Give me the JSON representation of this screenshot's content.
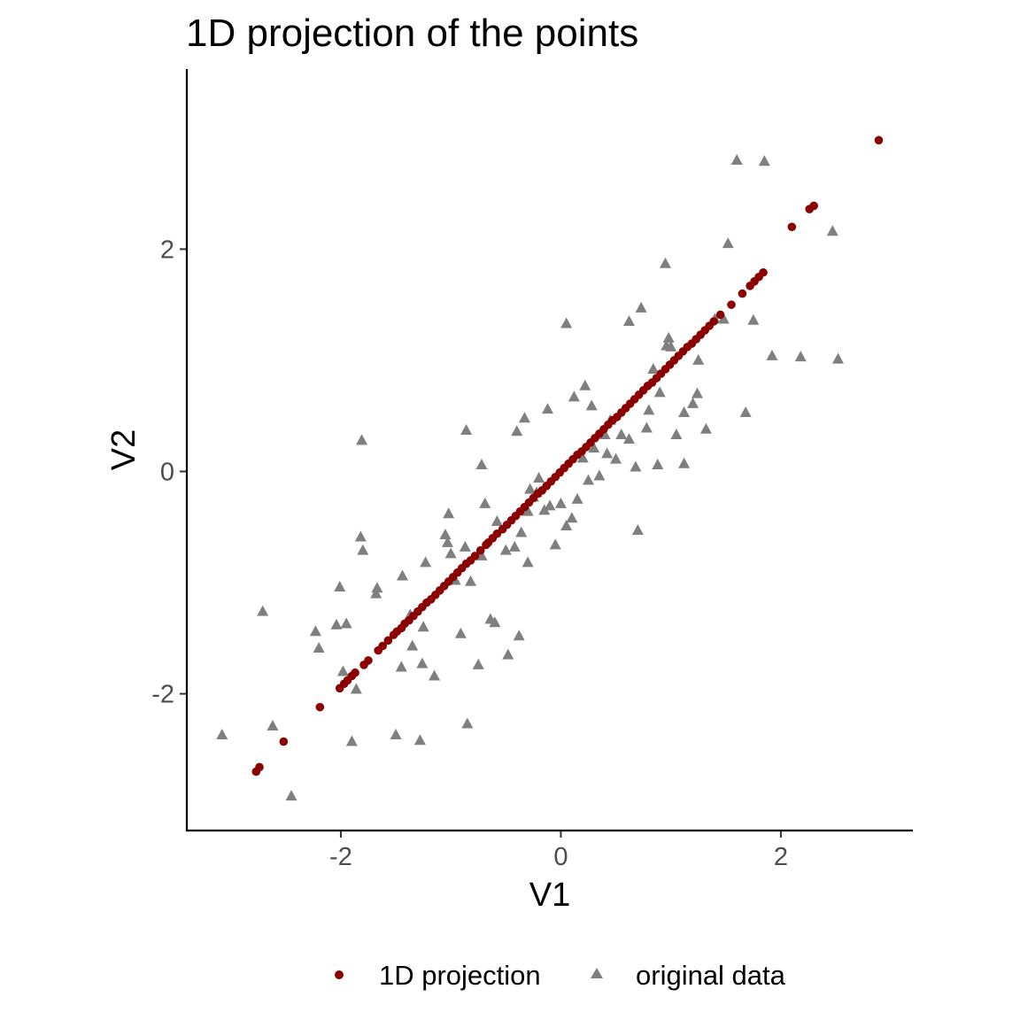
{
  "chart_data": {
    "type": "scatter",
    "title": "1D projection of the points",
    "xlabel": "V1",
    "ylabel": "V2",
    "xlim": [
      -3.4,
      3.2
    ],
    "ylim": [
      -3.23,
      3.62
    ],
    "xticks": [
      -2,
      0,
      2
    ],
    "yticks": [
      -2,
      0,
      2
    ],
    "xtick_labels": [
      "-2",
      "0",
      "2"
    ],
    "ytick_labels": [
      "-2",
      "0",
      "2"
    ],
    "grid": false,
    "legend_position": "bottom",
    "series": [
      {
        "name": "1D projection",
        "marker": "circle",
        "color": "#8B0000",
        "x": [
          -2.77,
          -2.74,
          -2.52,
          -2.19,
          -2.01,
          -1.97,
          -1.94,
          -1.9,
          -1.87,
          -1.79,
          -1.75,
          -1.66,
          -1.62,
          -1.57,
          -1.52,
          -1.49,
          -1.45,
          -1.42,
          -1.38,
          -1.34,
          -1.3,
          -1.26,
          -1.22,
          -1.18,
          -1.14,
          -1.1,
          -1.06,
          -1.02,
          -0.98,
          -0.94,
          -0.9,
          -0.86,
          -0.82,
          -0.78,
          -0.73,
          -0.68,
          -0.66,
          -0.62,
          -0.58,
          -0.53,
          -0.49,
          -0.45,
          -0.41,
          -0.37,
          -0.33,
          -0.29,
          -0.25,
          -0.21,
          -0.17,
          -0.13,
          -0.09,
          -0.05,
          -0.01,
          0.03,
          0.07,
          0.11,
          0.15,
          0.19,
          0.23,
          0.27,
          0.31,
          0.35,
          0.39,
          0.43,
          0.47,
          0.51,
          0.55,
          0.59,
          0.63,
          0.67,
          0.71,
          0.75,
          0.79,
          0.83,
          0.87,
          0.91,
          0.95,
          0.99,
          1.03,
          1.07,
          1.11,
          1.15,
          1.19,
          1.23,
          1.27,
          1.31,
          1.35,
          1.39,
          1.45,
          1.55,
          1.65,
          1.72,
          1.76,
          1.8,
          1.84,
          2.1,
          2.26,
          2.3,
          2.89
        ],
        "y": [
          -2.7,
          -2.66,
          -2.43,
          -2.12,
          -1.95,
          -1.91,
          -1.88,
          -1.84,
          -1.81,
          -1.74,
          -1.7,
          -1.61,
          -1.57,
          -1.52,
          -1.47,
          -1.44,
          -1.41,
          -1.37,
          -1.34,
          -1.3,
          -1.26,
          -1.22,
          -1.18,
          -1.15,
          -1.11,
          -1.07,
          -1.03,
          -0.99,
          -0.95,
          -0.91,
          -0.87,
          -0.83,
          -0.8,
          -0.76,
          -0.71,
          -0.66,
          -0.64,
          -0.6,
          -0.56,
          -0.52,
          -0.48,
          -0.44,
          -0.4,
          -0.36,
          -0.32,
          -0.28,
          -0.24,
          -0.2,
          -0.17,
          -0.13,
          -0.09,
          -0.05,
          -0.01,
          0.03,
          0.07,
          0.11,
          0.15,
          0.18,
          0.22,
          0.26,
          0.3,
          0.34,
          0.38,
          0.42,
          0.46,
          0.49,
          0.53,
          0.57,
          0.61,
          0.65,
          0.69,
          0.73,
          0.77,
          0.8,
          0.84,
          0.88,
          0.92,
          0.96,
          1.0,
          1.04,
          1.08,
          1.12,
          1.15,
          1.19,
          1.23,
          1.27,
          1.31,
          1.35,
          1.41,
          1.5,
          1.6,
          1.67,
          1.71,
          1.75,
          1.79,
          2.2,
          2.36,
          2.39,
          2.98
        ]
      },
      {
        "name": "original data",
        "marker": "triangle",
        "color": "#7F7F7F",
        "x": [
          -3.08,
          -2.71,
          -2.62,
          -2.45,
          -2.23,
          -2.2,
          -2.04,
          -2.01,
          -1.95,
          -1.9,
          -1.86,
          -1.82,
          -1.81,
          -1.68,
          -1.67,
          -1.5,
          -1.44,
          -1.35,
          -1.28,
          -1.25,
          -1.23,
          -1.15,
          -1.05,
          -1.03,
          -1.0,
          -0.96,
          -0.91,
          -0.85,
          -0.82,
          -0.75,
          -0.72,
          -0.69,
          -0.64,
          -0.58,
          -0.5,
          -0.48,
          -0.42,
          -0.38,
          -0.36,
          -0.3,
          -0.28,
          -0.25,
          -0.2,
          -0.15,
          -0.1,
          -0.05,
          0.0,
          0.05,
          0.1,
          0.15,
          0.2,
          0.25,
          0.3,
          0.35,
          0.4,
          0.45,
          0.5,
          0.55,
          0.62,
          0.7,
          0.78,
          0.84,
          0.9,
          0.95,
          1.0,
          1.05,
          1.12,
          1.2,
          1.25,
          1.32,
          1.4,
          1.48,
          1.52,
          1.6,
          1.68,
          1.75,
          1.85,
          1.92,
          2.18,
          2.47,
          2.52,
          -1.26,
          -0.87,
          -0.6,
          -1.45,
          0.05,
          0.73,
          0.96,
          -1.8,
          -1.98,
          -1.37,
          -0.3,
          -0.4,
          0.22,
          0.62,
          0.8,
          0.88,
          1.12,
          0.98,
          1.24,
          0.68,
          -0.12,
          -0.86,
          -0.33,
          0.12,
          0.42,
          -0.72,
          -1.02,
          0.28,
          -0.22
        ],
        "y": [
          -2.37,
          -1.26,
          -2.29,
          -2.92,
          -1.44,
          -1.59,
          -1.38,
          -1.04,
          -1.37,
          -2.43,
          -1.96,
          -0.59,
          0.28,
          -1.1,
          -1.05,
          -2.37,
          -0.94,
          -1.57,
          -2.42,
          -1.4,
          -0.82,
          -1.84,
          -0.57,
          -0.64,
          -0.74,
          -0.98,
          -1.46,
          -2.27,
          -0.99,
          -1.74,
          -0.76,
          -0.29,
          -1.33,
          -0.45,
          -0.71,
          -1.65,
          -0.68,
          -1.48,
          -0.55,
          -0.82,
          -0.16,
          -0.23,
          -0.06,
          -0.35,
          -0.31,
          -0.66,
          -0.29,
          -0.49,
          -0.42,
          -0.25,
          0.12,
          -0.08,
          0.21,
          -0.04,
          0.33,
          0.46,
          0.11,
          0.33,
          0.29,
          -0.53,
          0.39,
          0.92,
          0.71,
          1.87,
          1.12,
          0.33,
          0.07,
          0.61,
          1.0,
          0.38,
          1.37,
          1.37,
          2.05,
          2.8,
          0.53,
          1.36,
          2.79,
          1.04,
          1.03,
          2.16,
          1.01,
          -1.73,
          -0.68,
          -1.36,
          -1.76,
          1.33,
          1.47,
          1.13,
          -0.71,
          -1.8,
          -1.29,
          -0.36,
          0.36,
          0.77,
          1.35,
          0.55,
          0.06,
          0.53,
          1.2,
          0.7,
          0.04,
          0.56,
          0.37,
          0.48,
          0.67,
          0.16,
          0.06,
          -0.38,
          0.59,
          -0.19
        ]
      }
    ]
  },
  "legend": {
    "items": [
      {
        "label": "1D projection",
        "marker": "circle",
        "color": "#8B0000"
      },
      {
        "label": "original data",
        "marker": "triangle",
        "color": "#7F7F7F"
      }
    ]
  }
}
